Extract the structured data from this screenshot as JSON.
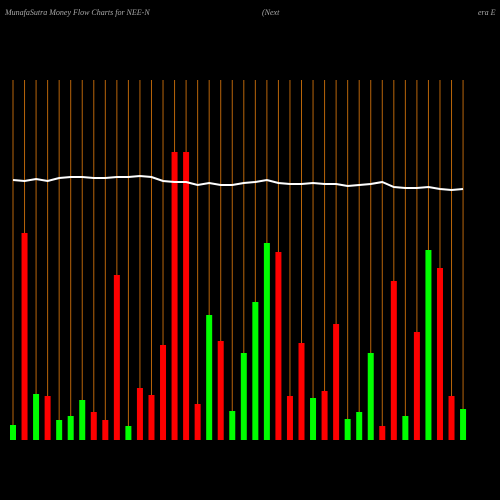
{
  "chart_data": {
    "type": "bar",
    "title": "MunafaSutra  Money Flow  Charts for NEE-N",
    "subtitle": [
      "(Next",
      "era  E"
    ],
    "categories": [
      null,
      null,
      null,
      null,
      null,
      null,
      null,
      null,
      null,
      null,
      null,
      null,
      null,
      null,
      null,
      null,
      null,
      null,
      null,
      null,
      null,
      null,
      null,
      null,
      null,
      null,
      null,
      null,
      null,
      null,
      null,
      null,
      null,
      null,
      null,
      null,
      null,
      null,
      null,
      null
    ],
    "values": [
      15,
      207,
      46,
      44,
      20,
      24,
      40,
      28,
      20,
      165,
      14,
      52,
      45,
      95,
      288,
      288,
      36,
      125,
      99,
      29,
      87,
      138,
      197,
      188,
      44,
      97,
      42,
      49,
      116,
      21,
      28,
      87,
      14,
      159,
      24,
      108,
      190,
      172,
      44,
      31
    ],
    "bar_colors": [
      "#00ff00",
      "#ff0000",
      "#00ff00",
      "#ff0000",
      "#00ff00",
      "#00ff00",
      "#00ff00",
      "#ff0000",
      "#ff0000",
      "#ff0000",
      "#00ff00",
      "#ff0000",
      "#ff0000",
      "#ff0000",
      "#ff0000",
      "#ff0000",
      "#ff0000",
      "#00ff00",
      "#ff0000",
      "#00ff00",
      "#00ff00",
      "#00ff00",
      "#00ff00",
      "#ff0000",
      "#ff0000",
      "#ff0000",
      "#00ff00",
      "#ff0000",
      "#ff0000",
      "#00ff00",
      "#00ff00",
      "#00ff00",
      "#ff0000",
      "#ff0000",
      "#00ff00",
      "#ff0000",
      "#00ff00",
      "#ff0000",
      "#ff0000",
      "#00ff00"
    ],
    "line": {
      "color": "#ffffff",
      "values": [
        260,
        259,
        261,
        259,
        262,
        263,
        263,
        262,
        262,
        263,
        263,
        264,
        263,
        259,
        258,
        258,
        255,
        257,
        255,
        255,
        257,
        258,
        260,
        257,
        256,
        256,
        257,
        256,
        256,
        254,
        255,
        256,
        258,
        253,
        252,
        252,
        253,
        251,
        250,
        251
      ]
    },
    "ylim": [
      0,
      360
    ],
    "grid_color": "#b8650a"
  }
}
